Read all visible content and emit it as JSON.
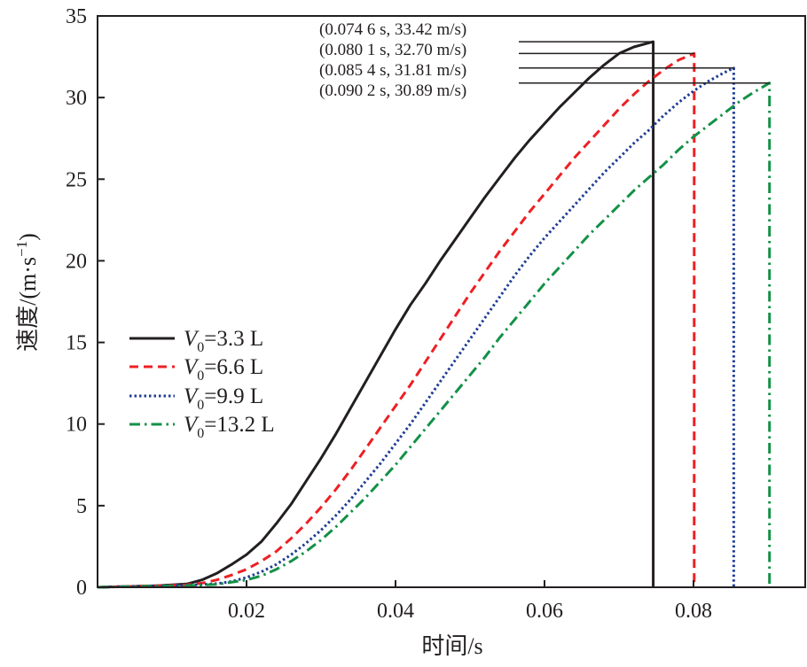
{
  "chart_data": {
    "type": "line",
    "xlabel": "时间/s",
    "ylabel_main": "速度/(m·s",
    "ylabel_sup": "−1",
    "ylabel_close": ")",
    "xlim": [
      0,
      0.095
    ],
    "ylim": [
      0,
      35
    ],
    "x_ticks": [
      0.02,
      0.04,
      0.06,
      0.08
    ],
    "x_tick_labels": [
      "0.02",
      "0.04",
      "0.06",
      "0.08"
    ],
    "y_ticks": [
      0,
      5,
      10,
      15,
      20,
      25,
      30,
      35
    ],
    "y_tick_labels": [
      "0",
      "5",
      "10",
      "15",
      "20",
      "25",
      "30",
      "35"
    ],
    "grid": false,
    "legend_position": "middle-left",
    "series": [
      {
        "name_italic": "V",
        "name_sub": "0",
        "name_rest": "=3.3 L",
        "color": "#231f20",
        "dash": "solid",
        "end_x": 0.0746,
        "end_y": 33.42,
        "x": [
          0,
          0.004,
          0.008,
          0.012,
          0.014,
          0.016,
          0.018,
          0.02,
          0.022,
          0.024,
          0.026,
          0.028,
          0.03,
          0.032,
          0.034,
          0.036,
          0.038,
          0.04,
          0.042,
          0.044,
          0.046,
          0.048,
          0.05,
          0.052,
          0.054,
          0.056,
          0.058,
          0.06,
          0.062,
          0.064,
          0.066,
          0.068,
          0.07,
          0.072,
          0.0746
        ],
        "y": [
          0,
          0.05,
          0.1,
          0.2,
          0.45,
          0.85,
          1.4,
          2.0,
          2.8,
          3.9,
          5.1,
          6.5,
          7.9,
          9.4,
          11.0,
          12.6,
          14.2,
          15.8,
          17.3,
          18.6,
          20.0,
          21.3,
          22.6,
          23.9,
          25.1,
          26.3,
          27.4,
          28.4,
          29.4,
          30.3,
          31.2,
          32.0,
          32.7,
          33.1,
          33.42
        ]
      },
      {
        "name_italic": "V",
        "name_sub": "0",
        "name_rest": "=6.6 L",
        "color": "#ed2024",
        "dash": "10,6",
        "end_x": 0.0801,
        "end_y": 32.7,
        "x": [
          0,
          0.004,
          0.008,
          0.012,
          0.014,
          0.016,
          0.018,
          0.02,
          0.022,
          0.024,
          0.026,
          0.028,
          0.03,
          0.032,
          0.034,
          0.036,
          0.038,
          0.04,
          0.042,
          0.044,
          0.046,
          0.048,
          0.05,
          0.052,
          0.054,
          0.056,
          0.058,
          0.06,
          0.062,
          0.064,
          0.066,
          0.068,
          0.07,
          0.072,
          0.074,
          0.076,
          0.078,
          0.0801
        ],
        "y": [
          0,
          0.05,
          0.1,
          0.15,
          0.25,
          0.45,
          0.75,
          1.1,
          1.6,
          2.2,
          3.0,
          3.9,
          4.9,
          6.0,
          7.2,
          8.5,
          9.8,
          11.1,
          12.4,
          13.8,
          15.2,
          16.6,
          18.0,
          19.3,
          20.6,
          21.8,
          23.0,
          24.1,
          25.2,
          26.3,
          27.3,
          28.3,
          29.3,
          30.2,
          31.0,
          31.7,
          32.3,
          32.7
        ]
      },
      {
        "name_italic": "V",
        "name_sub": "0",
        "name_rest": "=9.9 L",
        "color": "#1f3c95",
        "dash": "2.5,3",
        "end_x": 0.0854,
        "end_y": 31.81,
        "x": [
          0,
          0.004,
          0.008,
          0.012,
          0.016,
          0.018,
          0.02,
          0.022,
          0.024,
          0.026,
          0.028,
          0.03,
          0.032,
          0.034,
          0.036,
          0.038,
          0.04,
          0.042,
          0.044,
          0.046,
          0.048,
          0.05,
          0.052,
          0.054,
          0.056,
          0.058,
          0.06,
          0.062,
          0.064,
          0.066,
          0.068,
          0.07,
          0.072,
          0.074,
          0.076,
          0.078,
          0.08,
          0.082,
          0.084,
          0.0854
        ],
        "y": [
          0,
          0.05,
          0.08,
          0.12,
          0.22,
          0.35,
          0.6,
          0.95,
          1.4,
          2.0,
          2.7,
          3.5,
          4.4,
          5.4,
          6.5,
          7.6,
          8.8,
          10.0,
          11.3,
          12.6,
          13.9,
          15.2,
          16.5,
          17.8,
          19.1,
          20.3,
          21.4,
          22.4,
          23.4,
          24.4,
          25.4,
          26.3,
          27.2,
          28.0,
          28.9,
          29.7,
          30.4,
          31.0,
          31.5,
          31.81
        ]
      },
      {
        "name_italic": "V",
        "name_sub": "0",
        "name_rest": "=13.2 L",
        "color": "#139147",
        "dash": "12,5,2.5,5",
        "end_x": 0.0902,
        "end_y": 30.89,
        "x": [
          0,
          0.004,
          0.008,
          0.012,
          0.016,
          0.02,
          0.022,
          0.024,
          0.026,
          0.028,
          0.03,
          0.032,
          0.034,
          0.036,
          0.038,
          0.04,
          0.042,
          0.044,
          0.046,
          0.048,
          0.05,
          0.052,
          0.054,
          0.056,
          0.058,
          0.06,
          0.062,
          0.064,
          0.066,
          0.068,
          0.07,
          0.072,
          0.074,
          0.076,
          0.078,
          0.08,
          0.082,
          0.084,
          0.086,
          0.088,
          0.0902
        ],
        "y": [
          0,
          0.04,
          0.07,
          0.1,
          0.18,
          0.45,
          0.7,
          1.1,
          1.6,
          2.2,
          2.9,
          3.7,
          4.6,
          5.5,
          6.5,
          7.5,
          8.6,
          9.7,
          10.8,
          11.9,
          13.0,
          14.1,
          15.3,
          16.4,
          17.5,
          18.6,
          19.6,
          20.6,
          21.6,
          22.5,
          23.4,
          24.3,
          25.1,
          25.9,
          26.8,
          27.6,
          28.3,
          29.0,
          29.7,
          30.3,
          30.89
        ]
      }
    ],
    "annotations": [
      "(0.074 6 s, 33.42 m/s)",
      "(0.080 1 s, 32.70 m/s)",
      "(0.085 4 s, 31.81 m/s)",
      "(0.090 2 s, 30.89 m/s)"
    ]
  }
}
